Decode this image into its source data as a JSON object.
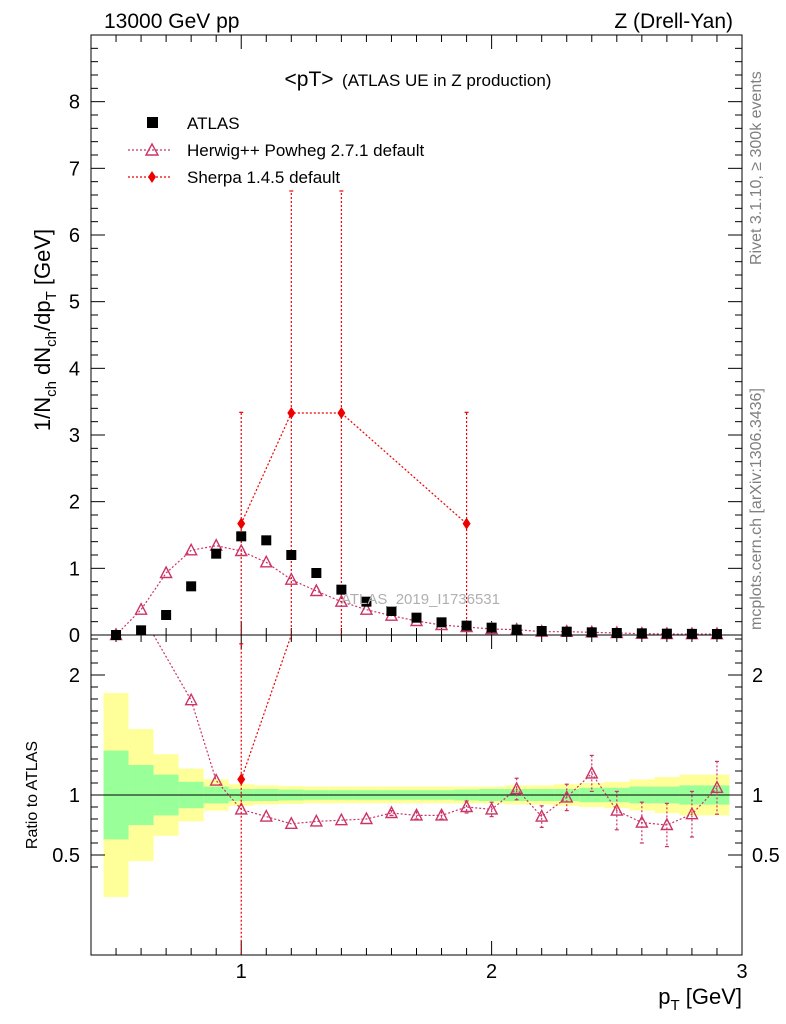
{
  "header": {
    "left_label": "13000 GeV pp",
    "right_label": "Z (Drell-Yan)"
  },
  "main_plot": {
    "title_main": "<pT>",
    "title_sub": "(ATLAS UE in Z production)",
    "watermark": "ATLAS_2019_I1736531",
    "legend": [
      "ATLAS",
      "Herwig++ Powheg 2.7.1 default",
      "Sherpa 1.4.5 default"
    ]
  },
  "ratio_plot": {
    "ylabel": "Ratio to ATLAS"
  },
  "side_labels": {
    "rivet": "Rivet 3.1.10, ≥ 300k events",
    "mcplots": "mcplots.cern.ch [arXiv:1306.3436]"
  },
  "colors": {
    "data": "#000000",
    "herwig": "#cc3366",
    "sherpa": "#ee0000",
    "band_inner": "#99ff99",
    "band_outer": "#ffff99"
  },
  "chart_data": [
    {
      "type": "scatter",
      "ylabel": "1/N_ch dN_ch/dp_T [GeV]",
      "xlim": [
        0.4,
        3.0
      ],
      "ylim": [
        0,
        9
      ],
      "yticks": [
        0,
        1,
        2,
        3,
        4,
        5,
        6,
        7,
        8
      ],
      "series": [
        {
          "name": "ATLAS",
          "x": [
            0.5,
            0.6,
            0.7,
            0.8,
            0.9,
            1.0,
            1.1,
            1.2,
            1.3,
            1.4,
            1.5,
            1.6,
            1.7,
            1.8,
            1.9,
            2.0,
            2.1,
            2.2,
            2.3,
            2.4,
            2.5,
            2.6,
            2.7,
            2.8,
            2.9
          ],
          "y": [
            0.0,
            0.07,
            0.3,
            0.73,
            1.22,
            1.48,
            1.42,
            1.2,
            0.93,
            0.68,
            0.5,
            0.36,
            0.26,
            0.19,
            0.14,
            0.11,
            0.08,
            0.06,
            0.05,
            0.04,
            0.03,
            0.025,
            0.02,
            0.017,
            0.015
          ]
        },
        {
          "name": "Herwig++ Powheg 2.7.1 default",
          "x": [
            0.5,
            0.6,
            0.7,
            0.8,
            0.9,
            1.0,
            1.1,
            1.2,
            1.3,
            1.4,
            1.5,
            1.6,
            1.7,
            1.8,
            1.9,
            2.0,
            2.1,
            2.2,
            2.3,
            2.4,
            2.5,
            2.6,
            2.7,
            2.8,
            2.9
          ],
          "y": [
            0.0,
            0.38,
            0.93,
            1.27,
            1.34,
            1.26,
            1.09,
            0.83,
            0.66,
            0.5,
            0.38,
            0.29,
            0.21,
            0.15,
            0.12,
            0.09,
            0.08,
            0.05,
            0.05,
            0.04,
            0.03,
            0.02,
            0.015,
            0.013,
            0.013
          ]
        },
        {
          "name": "Sherpa 1.4.5 default",
          "x": [
            1.0,
            1.2,
            1.4,
            1.9
          ],
          "y": [
            1.67,
            3.33,
            3.33,
            1.67
          ],
          "yerr": [
            1.67,
            3.33,
            3.33,
            1.67
          ]
        }
      ]
    },
    {
      "type": "scatter",
      "xlabel": "p_T [GeV]",
      "ylabel": "Ratio to ATLAS",
      "xlim": [
        0.4,
        3.0
      ],
      "ylim": [
        0.35,
        2.3
      ],
      "yticks": [
        0.5,
        1,
        2
      ],
      "xticks": [
        1,
        2,
        3
      ],
      "bands": {
        "x_edges": [
          0.45,
          0.55,
          0.65,
          0.75,
          0.85,
          0.95,
          1.05,
          1.15,
          1.25,
          1.35,
          1.45,
          1.55,
          1.65,
          1.75,
          1.85,
          1.95,
          2.05,
          2.15,
          2.25,
          2.35,
          2.45,
          2.55,
          2.65,
          2.75,
          2.85,
          2.95
        ],
        "inner_half_width": [
          0.37,
          0.25,
          0.17,
          0.11,
          0.07,
          0.05,
          0.05,
          0.045,
          0.04,
          0.04,
          0.04,
          0.04,
          0.04,
          0.04,
          0.045,
          0.05,
          0.05,
          0.05,
          0.05,
          0.06,
          0.06,
          0.07,
          0.07,
          0.08,
          0.08
        ],
        "outer_half_width": [
          0.85,
          0.55,
          0.34,
          0.22,
          0.13,
          0.09,
          0.08,
          0.075,
          0.07,
          0.07,
          0.07,
          0.07,
          0.07,
          0.07,
          0.07,
          0.07,
          0.08,
          0.08,
          0.09,
          0.1,
          0.11,
          0.13,
          0.15,
          0.17,
          0.17
        ]
      },
      "series": [
        {
          "name": "Herwig++ Powheg 2.7.1 default",
          "x": [
            0.8,
            0.9,
            1.0,
            1.1,
            1.2,
            1.3,
            1.4,
            1.5,
            1.6,
            1.7,
            1.8,
            1.9,
            2.0,
            2.1,
            2.2,
            2.3,
            2.4,
            2.5,
            2.6,
            2.7,
            2.8,
            2.9
          ],
          "y": [
            1.79,
            1.12,
            0.88,
            0.82,
            0.76,
            0.78,
            0.79,
            0.8,
            0.85,
            0.83,
            0.83,
            0.9,
            0.88,
            1.05,
            0.82,
            0.98,
            1.18,
            0.87,
            0.77,
            0.75,
            0.84,
            1.06
          ],
          "yerr": [
            0.0,
            0.0,
            0.0,
            0.0,
            0.0,
            0.0,
            0.0,
            0.0,
            0.02,
            0.03,
            0.03,
            0.05,
            0.06,
            0.09,
            0.09,
            0.11,
            0.15,
            0.16,
            0.17,
            0.18,
            0.19,
            0.22
          ]
        },
        {
          "name": "Sherpa 1.4.5 default",
          "x": [
            1.0
          ],
          "y": [
            1.13
          ],
          "yerr": [
            1.13
          ]
        }
      ]
    }
  ]
}
